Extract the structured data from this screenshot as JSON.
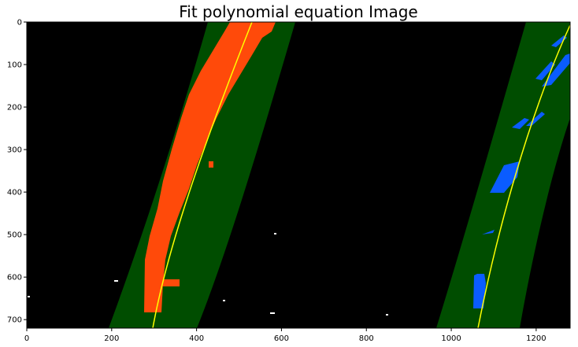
{
  "title": "Fit polynomial equation Image",
  "axes": {
    "x_ticks": [
      "0",
      "200",
      "400",
      "600",
      "800",
      "1000",
      "1200"
    ],
    "y_ticks": [
      "0",
      "100",
      "200",
      "300",
      "400",
      "500",
      "600",
      "700"
    ],
    "x_range": [
      0,
      1280
    ],
    "y_range": [
      0,
      720
    ],
    "y_inverted": true
  },
  "image": {
    "description_colors": {
      "background": "#000000",
      "search_window": "#004d00",
      "left_lane_pixels": "#ff4a0a",
      "right_lane_pixels": "#0a5cff",
      "fit_line": "#ffff00",
      "noise": "#ffffff"
    },
    "left_fit_points": [
      [
        295,
        720
      ],
      [
        360,
        470
      ],
      [
        440,
        240
      ],
      [
        530,
        0
      ]
    ],
    "right_fit_points": [
      [
        1063,
        720
      ],
      [
        1120,
        470
      ],
      [
        1200,
        240
      ],
      [
        1280,
        10
      ]
    ],
    "left_window_offset": 105,
    "right_window_offset": 100
  }
}
